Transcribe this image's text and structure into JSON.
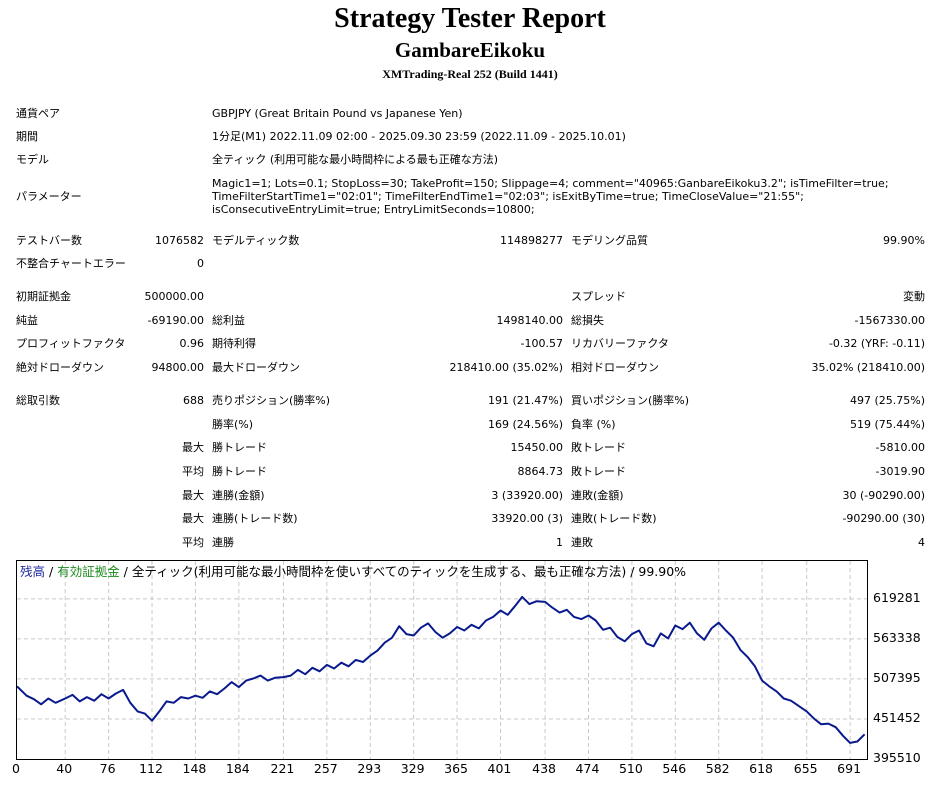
{
  "header": {
    "title": "Strategy Tester Report",
    "subtitle": "GambareEikoku",
    "build": "XMTrading-Real 252 (Build 1441)"
  },
  "settings": {
    "symbol_label": "通貨ペア",
    "symbol_value": "GBPJPY (Great Britain Pound vs Japanese Yen)",
    "period_label": "期間",
    "period_value": "1分足(M1) 2022.11.09 02:00 - 2025.09.30 23:59 (2022.11.09 - 2025.10.01)",
    "model_label": "モデル",
    "model_value": "全ティック (利用可能な最小時間枠による最も正確な方法)",
    "params_label": "パラメーター",
    "params_value": "Magic1=1; Lots=0.1; StopLoss=30; TakeProfit=150; Slippage=4; comment=\"40965:GanbareEikoku3.2\"; isTimeFilter=true;\nTimeFilterStartTime1=\"02:01\"; TimeFilterEndTime1=\"02:03\"; isExitByTime=true; TimeCloseValue=\"21:55\";\nisConsecutiveEntryLimit=true; EntryLimitSeconds=10800;"
  },
  "stats": {
    "bars_label": "テストバー数",
    "bars_value": "1076582",
    "ticks_label": "モデルティック数",
    "ticks_value": "114898277",
    "quality_label": "モデリング品質",
    "quality_value": "99.90%",
    "mismatch_label": "不整合チャートエラー",
    "mismatch_value": "0",
    "deposit_label": "初期証拠金",
    "deposit_value": "500000.00",
    "spread_label": "スプレッド",
    "spread_value": "変動",
    "net_label": "純益",
    "net_value": "-69190.00",
    "gross_profit_label": "総利益",
    "gross_profit_value": "1498140.00",
    "gross_loss_label": "総損失",
    "gross_loss_value": "-1567330.00",
    "pf_label": "プロフィットファクタ",
    "pf_value": "0.96",
    "payoff_label": "期待利得",
    "payoff_value": "-100.57",
    "recovery_label": "リカバリーファクタ",
    "recovery_value": "-0.32 (YRF: -0.11)",
    "abs_dd_label": "絶対ドローダウン",
    "abs_dd_value": "94800.00",
    "max_dd_label": "最大ドローダウン",
    "max_dd_value": "218410.00 (35.02%)",
    "rel_dd_label": "相対ドローダウン",
    "rel_dd_value": "35.02% (218410.00)",
    "trades_label": "総取引数",
    "trades_value": "688",
    "short_label": "売りポジション(勝率%)",
    "short_value": "191 (21.47%)",
    "long_label": "買いポジション(勝率%)",
    "long_value": "497 (25.75%)",
    "win_rate_label": "勝率(%)",
    "win_rate_value": "169 (24.56%)",
    "loss_rate_label": "負率 (%)",
    "loss_rate_value": "519 (75.44%)",
    "max1": "最大",
    "avg1": "平均",
    "max2": "最大",
    "max3": "最大",
    "avg2": "平均",
    "largest_win_label": "勝トレード",
    "largest_win_value": "15450.00",
    "largest_loss_label": "敗トレード",
    "largest_loss_value": "-5810.00",
    "avg_win_label": "勝トレード",
    "avg_win_value": "8864.73",
    "avg_loss_label": "敗トレード",
    "avg_loss_value": "-3019.90",
    "max_cons_win_amt_label": "連勝(金額)",
    "max_cons_win_amt_value": "3 (33920.00)",
    "max_cons_loss_amt_label": "連敗(金額)",
    "max_cons_loss_amt_value": "30 (-90290.00)",
    "max_cons_win_cnt_label": "連勝(トレード数)",
    "max_cons_win_cnt_value": "33920.00 (3)",
    "max_cons_loss_cnt_label": "連敗(トレード数)",
    "max_cons_loss_cnt_value": "-90290.00 (30)",
    "avg_cons_win_label": "連勝",
    "avg_cons_win_value": "1",
    "avg_cons_loss_label": "連敗",
    "avg_cons_loss_value": "4"
  },
  "chart_legend": {
    "balance": "残高",
    "sep1": " / ",
    "equity": "有効証拠金",
    "rest": " / 全ティック(利用可能な最小時間枠を使いすべてのティックを生成する、最も正確な方法) / 99.90%"
  },
  "colors": {
    "balance_line": "#0a1a8c",
    "equity_text": "#1c8a1c",
    "grid": "#c8c8c8"
  },
  "chart_data": {
    "type": "line",
    "title": "",
    "xlabel": "",
    "ylabel": "",
    "x_ticks": [
      "0",
      "40",
      "76",
      "112",
      "148",
      "184",
      "221",
      "257",
      "293",
      "329",
      "365",
      "401",
      "438",
      "474",
      "510",
      "546",
      "582",
      "618",
      "655",
      "691"
    ],
    "y_ticks": [
      "619281",
      "563338",
      "507395",
      "451452",
      "395510"
    ],
    "xlim": [
      0,
      705
    ],
    "ylim": [
      395510,
      647000
    ],
    "grid": true,
    "series": [
      {
        "name": "残高",
        "x": [
          0,
          8,
          14,
          20,
          26,
          32,
          40,
          46,
          52,
          58,
          64,
          70,
          76,
          82,
          88,
          94,
          100,
          106,
          112,
          118,
          124,
          130,
          136,
          142,
          148,
          154,
          160,
          166,
          172,
          178,
          184,
          190,
          196,
          202,
          208,
          214,
          221,
          227,
          233,
          239,
          245,
          251,
          257,
          263,
          269,
          275,
          281,
          287,
          293,
          299,
          305,
          311,
          317,
          323,
          329,
          335,
          341,
          347,
          353,
          359,
          365,
          371,
          377,
          383,
          389,
          395,
          401,
          407,
          413,
          419,
          425,
          431,
          438,
          444,
          450,
          456,
          462,
          468,
          474,
          480,
          486,
          492,
          498,
          504,
          510,
          516,
          522,
          528,
          534,
          540,
          546,
          552,
          558,
          564,
          570,
          576,
          582,
          588,
          594,
          600,
          606,
          612,
          618,
          624,
          630,
          636,
          642,
          648,
          655,
          661,
          667,
          673,
          679,
          685,
          691,
          697,
          703
        ],
        "y": [
          497000,
          484000,
          479000,
          472000,
          480000,
          474000,
          480000,
          485000,
          476000,
          482000,
          477000,
          486000,
          480000,
          487000,
          492000,
          474000,
          462000,
          459000,
          449000,
          462000,
          476000,
          474000,
          482000,
          480000,
          484000,
          481000,
          490000,
          486000,
          494000,
          503000,
          496000,
          505000,
          508000,
          512000,
          505000,
          509000,
          510000,
          512000,
          520000,
          514000,
          523000,
          518000,
          527000,
          522000,
          530000,
          525000,
          534000,
          531000,
          540000,
          547000,
          558000,
          565000,
          581000,
          570000,
          568000,
          579000,
          585000,
          573000,
          565000,
          571000,
          580000,
          575000,
          583000,
          578000,
          589000,
          594000,
          603000,
          597000,
          609000,
          622000,
          612000,
          616000,
          615000,
          607000,
          600000,
          604000,
          594000,
          591000,
          596000,
          589000,
          576000,
          579000,
          566000,
          560000,
          570000,
          575000,
          557000,
          553000,
          571000,
          564000,
          582000,
          577000,
          586000,
          571000,
          562000,
          578000,
          586000,
          575000,
          565000,
          548000,
          538000,
          525000,
          505000,
          497000,
          490000,
          480000,
          477000,
          470000,
          462000,
          452000,
          444000,
          445000,
          440000,
          428000,
          418000,
          420000,
          430000
        ]
      }
    ]
  }
}
